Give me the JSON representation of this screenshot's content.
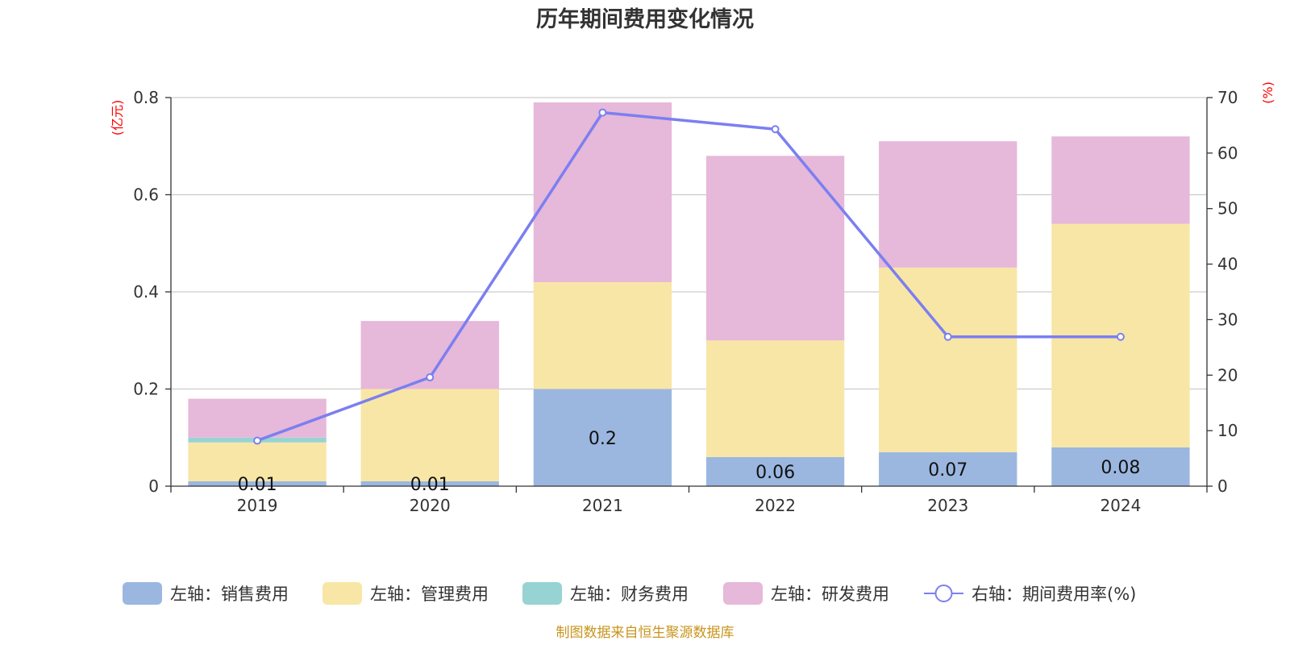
{
  "chart_data": {
    "type": "bar",
    "title": "历年期间费用变化情况",
    "categories": [
      "2019",
      "2020",
      "2021",
      "2022",
      "2023",
      "2024"
    ],
    "y_left": {
      "unit": "(亿元)",
      "ylim": [
        0,
        0.8
      ],
      "ticks": [
        "0",
        "0.2",
        "0.4",
        "0.6",
        "0.8"
      ]
    },
    "y_right": {
      "unit": "(%)",
      "ylim": [
        0,
        70
      ],
      "ticks": [
        "0",
        "10",
        "20",
        "30",
        "40",
        "50",
        "60",
        "70"
      ]
    },
    "stacked": true,
    "grid": true,
    "legend_position": "bottom",
    "series": [
      {
        "name": "左轴：销售费用",
        "axis": "left",
        "type": "bar",
        "color": "#9bb7e0",
        "values": [
          0.01,
          0.01,
          0.2,
          0.06,
          0.07,
          0.08
        ],
        "labels": [
          "0.01",
          "0.01",
          "0.2",
          "0.06",
          "0.07",
          "0.08"
        ]
      },
      {
        "name": "左轴：管理费用",
        "axis": "left",
        "type": "bar",
        "color": "#f8e6a6",
        "values": [
          0.08,
          0.19,
          0.22,
          0.24,
          0.38,
          0.46
        ]
      },
      {
        "name": "左轴：财务费用",
        "axis": "left",
        "type": "bar",
        "color": "#97d3d3",
        "values": [
          0.01,
          0.0,
          0.0,
          0.0,
          0.0,
          0.0
        ]
      },
      {
        "name": "左轴：研发费用",
        "axis": "left",
        "type": "bar",
        "color": "#e6b8d9",
        "values": [
          0.08,
          0.14,
          0.37,
          0.38,
          0.26,
          0.18
        ]
      },
      {
        "name": "右轴：期间费用率(%)",
        "axis": "right",
        "type": "line",
        "color": "#7b7ff0",
        "values": [
          8.2,
          19.6,
          67.3,
          64.3,
          26.9,
          26.9
        ]
      }
    ]
  },
  "source": "制图数据来自恒生聚源数据库"
}
